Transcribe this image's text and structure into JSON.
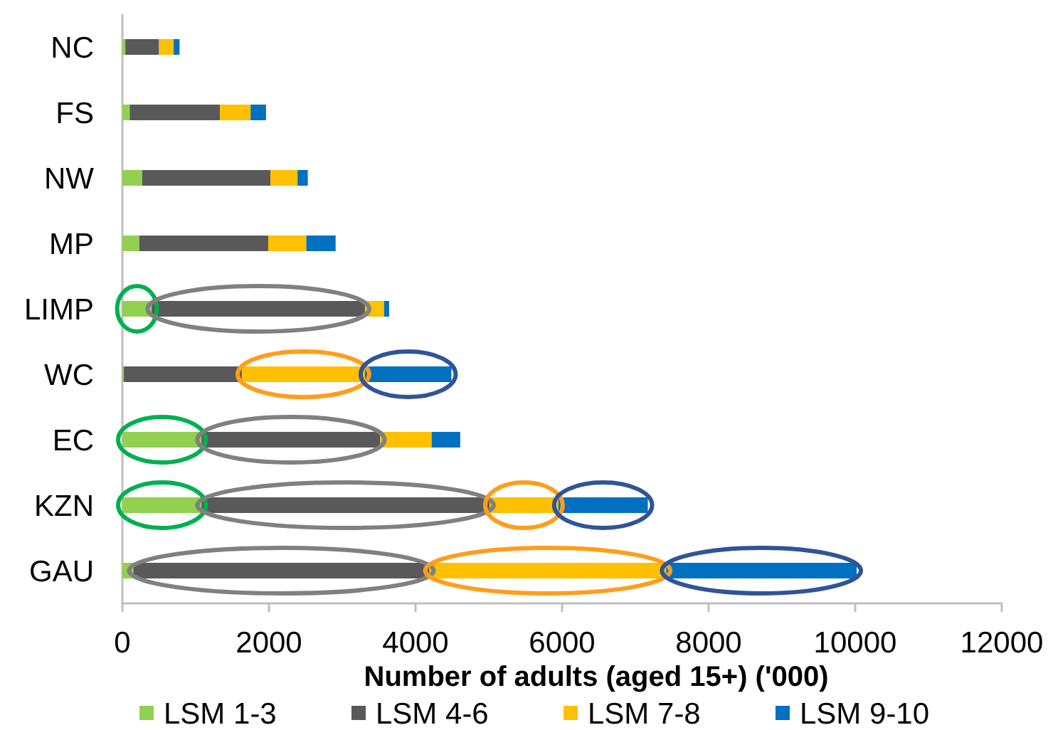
{
  "chart_data": {
    "type": "bar",
    "orientation": "horizontal",
    "stacked": true,
    "xlabel": "Number of adults (aged 15+) ('000)",
    "categories": [
      "NC",
      "FS",
      "NW",
      "MP",
      "LIMP",
      "WC",
      "EC",
      "KZN",
      "GAU"
    ],
    "series": [
      {
        "name": "LSM 1-3",
        "color": "#92d050",
        "values": [
          40,
          100,
          270,
          230,
          400,
          20,
          1080,
          1080,
          150
        ]
      },
      {
        "name": "LSM 4-6",
        "color": "#595959",
        "values": [
          460,
          1230,
          1750,
          1760,
          2910,
          1610,
          2440,
          3930,
          4040
        ]
      },
      {
        "name": "LSM 7-8",
        "color": "#ffc000",
        "values": [
          200,
          420,
          370,
          520,
          260,
          1680,
          700,
          940,
          3230
        ]
      },
      {
        "name": "LSM 9-10",
        "color": "#0070c0",
        "values": [
          80,
          210,
          140,
          400,
          70,
          1180,
          390,
          1220,
          2600
        ]
      }
    ],
    "xlim": [
      0,
      12000
    ],
    "xticks": [
      0,
      2000,
      4000,
      6000,
      8000,
      10000,
      12000
    ],
    "legend": "bottom"
  }
}
